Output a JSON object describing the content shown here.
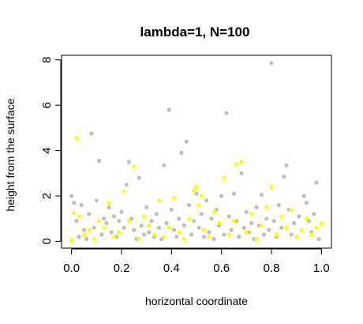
{
  "chart_data": {
    "type": "scatter",
    "title": "lambda=1, N=100",
    "xlabel": "horizontal coordinate",
    "ylabel": "height from the surface",
    "xlim": [
      -0.04,
      1.04
    ],
    "ylim": [
      -0.3,
      8.2
    ],
    "x_ticks": [
      "0.0",
      "0.2",
      "0.4",
      "0.6",
      "0.8",
      "1.0"
    ],
    "x_tick_values": [
      0,
      0.2,
      0.4,
      0.6,
      0.8,
      1.0
    ],
    "y_ticks": [
      "0",
      "2",
      "4",
      "6",
      "8"
    ],
    "y_tick_values": [
      0,
      2,
      4,
      6,
      8
    ],
    "grid": false,
    "legend": "none",
    "series": [
      {
        "color": "#bebebe",
        "points": [
          [
            0.0,
            2.0
          ],
          [
            0.01,
            1.7
          ],
          [
            0.02,
            0.9
          ],
          [
            0.03,
            0.2
          ],
          [
            0.04,
            1.6
          ],
          [
            0.05,
            0.5
          ],
          [
            0.06,
            0.1
          ],
          [
            0.07,
            1.2
          ],
          [
            0.08,
            4.75
          ],
          [
            0.09,
            0.6
          ],
          [
            0.1,
            1.8
          ],
          [
            0.11,
            3.55
          ],
          [
            0.12,
            0.3
          ],
          [
            0.13,
            1.0
          ],
          [
            0.14,
            0.8
          ],
          [
            0.15,
            1.5
          ],
          [
            0.16,
            0.4
          ],
          [
            0.17,
            1.1
          ],
          [
            0.18,
            0.2
          ],
          [
            0.19,
            0.9
          ],
          [
            0.2,
            1.3
          ],
          [
            0.21,
            0.6
          ],
          [
            0.22,
            2.5
          ],
          [
            0.23,
            3.5
          ],
          [
            0.24,
            1.0
          ],
          [
            0.25,
            0.5
          ],
          [
            0.26,
            0.1
          ],
          [
            0.27,
            2.8
          ],
          [
            0.28,
            0.7
          ],
          [
            0.29,
            0.3
          ],
          [
            0.3,
            1.5
          ],
          [
            0.31,
            0.4
          ],
          [
            0.32,
            0.9
          ],
          [
            0.33,
            0.2
          ],
          [
            0.34,
            1.2
          ],
          [
            0.35,
            0.6
          ],
          [
            0.36,
            0.1
          ],
          [
            0.37,
            3.35
          ],
          [
            0.38,
            0.8
          ],
          [
            0.39,
            5.8
          ],
          [
            0.4,
            1.4
          ],
          [
            0.41,
            0.5
          ],
          [
            0.42,
            0.2
          ],
          [
            0.43,
            1.0
          ],
          [
            0.44,
            3.9
          ],
          [
            0.45,
            0.7
          ],
          [
            0.46,
            4.4
          ],
          [
            0.47,
            1.6
          ],
          [
            0.48,
            0.3
          ],
          [
            0.49,
            0.9
          ],
          [
            0.5,
            2.1
          ],
          [
            0.51,
            0.6
          ],
          [
            0.52,
            1.2
          ],
          [
            0.53,
            0.2
          ],
          [
            0.54,
            1.8
          ],
          [
            0.55,
            0.4
          ],
          [
            0.56,
            1.0
          ],
          [
            0.57,
            0.1
          ],
          [
            0.58,
            1.4
          ],
          [
            0.59,
            0.7
          ],
          [
            0.6,
            2.0
          ],
          [
            0.61,
            0.3
          ],
          [
            0.62,
            5.65
          ],
          [
            0.63,
            1.1
          ],
          [
            0.64,
            0.5
          ],
          [
            0.65,
            2.1
          ],
          [
            0.66,
            0.9
          ],
          [
            0.67,
            0.2
          ],
          [
            0.68,
            3.0
          ],
          [
            0.69,
            0.6
          ],
          [
            0.7,
            1.3
          ],
          [
            0.71,
            0.4
          ],
          [
            0.72,
            0.8
          ],
          [
            0.73,
            0.1
          ],
          [
            0.74,
            1.5
          ],
          [
            0.75,
            0.7
          ],
          [
            0.76,
            2.05
          ],
          [
            0.77,
            0.3
          ],
          [
            0.78,
            1.0
          ],
          [
            0.79,
            0.5
          ],
          [
            0.8,
            7.85
          ],
          [
            0.81,
            0.9
          ],
          [
            0.82,
            0.2
          ],
          [
            0.83,
            1.6
          ],
          [
            0.84,
            0.6
          ],
          [
            0.85,
            2.85
          ],
          [
            0.86,
            3.35
          ],
          [
            0.87,
            1.4
          ],
          [
            0.88,
            0.3
          ],
          [
            0.89,
            0.8
          ],
          [
            0.9,
            0.2
          ],
          [
            0.91,
            1.1
          ],
          [
            0.92,
            0.5
          ],
          [
            0.93,
            2.0
          ],
          [
            0.94,
            1.7
          ],
          [
            0.95,
            0.9
          ],
          [
            0.96,
            0.4
          ],
          [
            0.97,
            1.2
          ],
          [
            0.98,
            2.6
          ],
          [
            0.99,
            0.1
          ]
        ]
      },
      {
        "color": "#ffff00",
        "points": [
          [
            0.0,
            0.05
          ],
          [
            0.01,
            1.25
          ],
          [
            0.02,
            4.55
          ],
          [
            0.03,
            1.1
          ],
          [
            0.05,
            0.3
          ],
          [
            0.07,
            0.5
          ],
          [
            0.09,
            0.1
          ],
          [
            0.11,
            0.9
          ],
          [
            0.13,
            0.6
          ],
          [
            0.15,
            1.7
          ],
          [
            0.17,
            0.2
          ],
          [
            0.19,
            0.4
          ],
          [
            0.21,
            2.2
          ],
          [
            0.23,
            0.9
          ],
          [
            0.25,
            3.3
          ],
          [
            0.27,
            0.1
          ],
          [
            0.29,
            1.1
          ],
          [
            0.31,
            0.7
          ],
          [
            0.33,
            0.3
          ],
          [
            0.35,
            1.8
          ],
          [
            0.37,
            0.2
          ],
          [
            0.39,
            0.6
          ],
          [
            0.41,
            1.9
          ],
          [
            0.43,
            0.4
          ],
          [
            0.45,
            0.1
          ],
          [
            0.47,
            1.0
          ],
          [
            0.49,
            2.25
          ],
          [
            0.5,
            2.4
          ],
          [
            0.51,
            1.6
          ],
          [
            0.52,
            2.0
          ],
          [
            0.53,
            0.5
          ],
          [
            0.55,
            0.2
          ],
          [
            0.57,
            1.3
          ],
          [
            0.59,
            0.8
          ],
          [
            0.61,
            2.8
          ],
          [
            0.63,
            0.3
          ],
          [
            0.65,
            0.9
          ],
          [
            0.66,
            3.4
          ],
          [
            0.68,
            3.5
          ],
          [
            0.7,
            0.4
          ],
          [
            0.72,
            1.2
          ],
          [
            0.74,
            0.1
          ],
          [
            0.76,
            0.7
          ],
          [
            0.78,
            1.5
          ],
          [
            0.8,
            2.4
          ],
          [
            0.82,
            0.3
          ],
          [
            0.84,
            1.1
          ],
          [
            0.86,
            0.6
          ],
          [
            0.88,
            1.4
          ],
          [
            0.9,
            0.2
          ],
          [
            0.92,
            0.5
          ],
          [
            0.94,
            1.0
          ],
          [
            0.96,
            0.3
          ],
          [
            0.98,
            0.6
          ],
          [
            1.0,
            0.8
          ]
        ]
      }
    ]
  }
}
